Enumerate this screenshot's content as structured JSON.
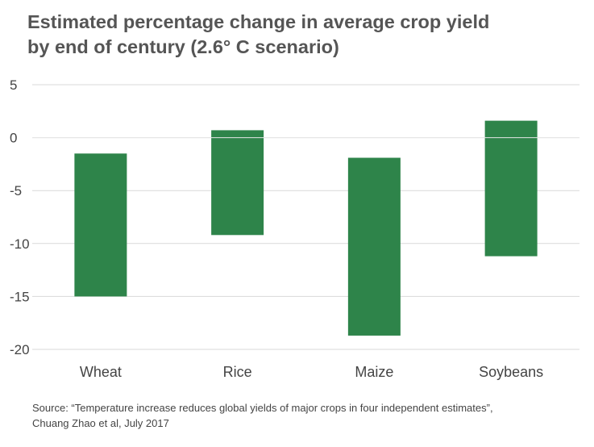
{
  "chart_data": {
    "type": "bar",
    "subtype": "floating-range",
    "title_lines": [
      "Estimated percentage change in average crop yield",
      "by end of century (2.6° C scenario)"
    ],
    "categories": [
      "Wheat",
      "Rice",
      "Maize",
      "Soybeans"
    ],
    "ranges": [
      {
        "low": -15.0,
        "high": -1.5
      },
      {
        "low": -9.2,
        "high": 0.7
      },
      {
        "low": -18.7,
        "high": -1.9
      },
      {
        "low": -11.2,
        "high": 1.6
      }
    ],
    "yticks": [
      5,
      0,
      -5,
      -10,
      -15,
      -20
    ],
    "ylim": [
      -20,
      5
    ],
    "grid": true,
    "bar_color": "#2e844a",
    "grid_color": "#d9d9d9",
    "source_lines": [
      "Source: “Temperature increase reduces global yields of major crops in four independent estimates”,",
      "Chuang Zhao et al, July 2017"
    ]
  }
}
